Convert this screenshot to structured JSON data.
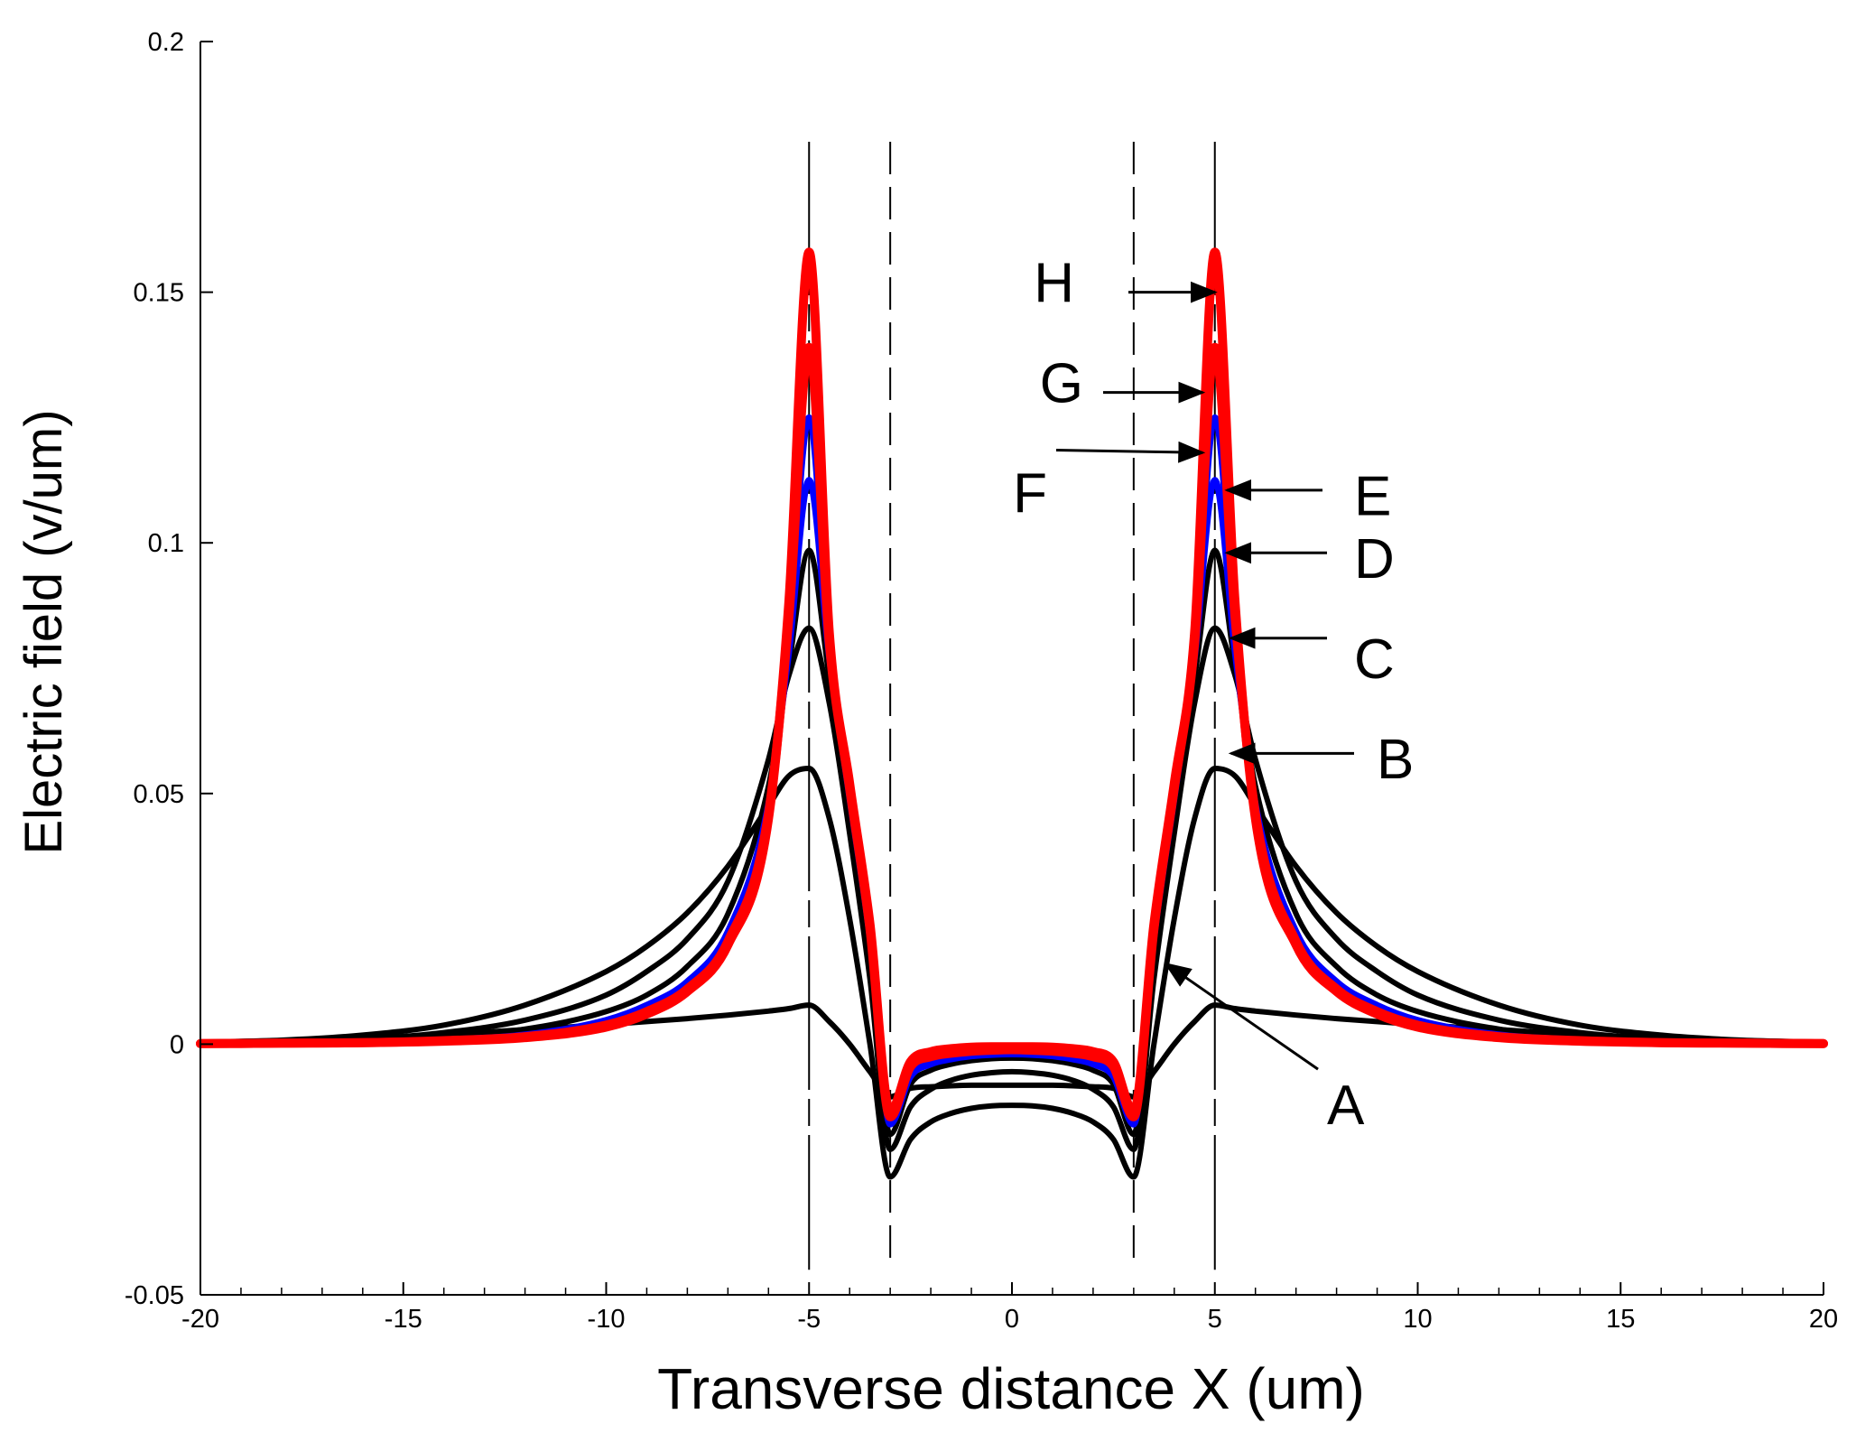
{
  "chart_data": {
    "type": "line",
    "title": "",
    "xlabel": "Transverse distance X (um)",
    "ylabel": "Electric field (v/um)",
    "xlim": [
      -20,
      20
    ],
    "ylim": [
      -0.05,
      0.2
    ],
    "xticks": [
      -20,
      -15,
      -10,
      -5,
      0,
      5,
      10,
      15,
      20
    ],
    "xtick_labels": [
      "-20",
      "-15",
      "-10",
      "-5",
      "0",
      "5",
      "10",
      "15",
      "20"
    ],
    "yticks": [
      -0.05,
      0,
      0.05,
      0.1,
      0.15,
      0.2
    ],
    "ytick_labels": [
      "-0.05",
      "0",
      "0.05",
      "0.1",
      "0.15",
      "0.2"
    ],
    "grid": false,
    "legend": "none",
    "reference_lines": [
      {
        "x": -5,
        "style": "solid"
      },
      {
        "x": -3,
        "style": "dashed"
      },
      {
        "x": 3,
        "style": "dashed"
      },
      {
        "x": 5,
        "style": "solid"
      }
    ],
    "x": [
      -20,
      -18,
      -16,
      -14,
      -12,
      -10,
      -9,
      -8,
      -7,
      -6,
      -5.5,
      -5,
      -4.5,
      -4,
      -3.5,
      -3,
      -2.5,
      -2,
      -1.5,
      -1,
      -0.5,
      0,
      0.5,
      1,
      1.5,
      2,
      2.5,
      3,
      3.5,
      4,
      4.5,
      5,
      5.5,
      6,
      7,
      8,
      9,
      10,
      12,
      14,
      16,
      18,
      20
    ],
    "series": [
      {
        "name": "A",
        "color": "#000000",
        "values": [
          0.0004,
          0.0007,
          0.0012,
          0.0019,
          0.0029,
          0.0039,
          0.0045,
          0.0051,
          0.0058,
          0.0066,
          0.0071,
          0.0078,
          0.0045,
          0.0,
          -0.0055,
          -0.0105,
          -0.0088,
          -0.0085,
          -0.0083,
          -0.0082,
          -0.0082,
          -0.0082,
          -0.0082,
          -0.0082,
          -0.0083,
          -0.0085,
          -0.0088,
          -0.0105,
          -0.0055,
          0.0,
          0.0045,
          0.0078,
          0.0071,
          0.0066,
          0.0058,
          0.0051,
          0.0045,
          0.0039,
          0.0029,
          0.0019,
          0.0012,
          0.0007,
          0.0004
        ]
      },
      {
        "name": "B",
        "color": "#000000",
        "values": [
          0.0004,
          0.0008,
          0.0018,
          0.0038,
          0.0078,
          0.0145,
          0.0195,
          0.0262,
          0.0355,
          0.0475,
          0.0535,
          0.055,
          0.045,
          0.025,
          0.0,
          -0.0265,
          -0.019,
          -0.0155,
          -0.0138,
          -0.0128,
          -0.0123,
          -0.0122,
          -0.0123,
          -0.0128,
          -0.0138,
          -0.0155,
          -0.019,
          -0.0265,
          0.0,
          0.025,
          0.045,
          0.055,
          0.0535,
          0.0475,
          0.0355,
          0.0262,
          0.0195,
          0.0145,
          0.0078,
          0.0038,
          0.0018,
          0.0008,
          0.0004
        ]
      },
      {
        "name": "C",
        "color": "#000000",
        "values": [
          0.0002,
          0.0005,
          0.001,
          0.0023,
          0.0048,
          0.0098,
          0.0145,
          0.021,
          0.0325,
          0.0568,
          0.0735,
          0.083,
          0.068,
          0.042,
          0.013,
          -0.021,
          -0.0125,
          -0.009,
          -0.0072,
          -0.0062,
          -0.0057,
          -0.0055,
          -0.0057,
          -0.0062,
          -0.0072,
          -0.009,
          -0.0125,
          -0.021,
          0.013,
          0.042,
          0.068,
          0.083,
          0.0735,
          0.0568,
          0.0325,
          0.021,
          0.0145,
          0.0098,
          0.0048,
          0.0023,
          0.001,
          0.0005,
          0.0002
        ]
      },
      {
        "name": "D",
        "color": "#000000",
        "values": [
          0.0001,
          0.0003,
          0.0006,
          0.0014,
          0.003,
          0.0065,
          0.0098,
          0.0155,
          0.026,
          0.0515,
          0.0755,
          0.0985,
          0.073,
          0.047,
          0.019,
          -0.018,
          -0.008,
          -0.0052,
          -0.004,
          -0.0033,
          -0.0029,
          -0.0028,
          -0.0029,
          -0.0033,
          -0.004,
          -0.0052,
          -0.008,
          -0.018,
          0.019,
          0.047,
          0.073,
          0.0985,
          0.0755,
          0.0515,
          0.026,
          0.0155,
          0.0098,
          0.0065,
          0.003,
          0.0014,
          0.0006,
          0.0003,
          0.0001
        ]
      },
      {
        "name": "E",
        "color": "#0000ff",
        "values": [
          0.0001,
          0.0002,
          0.0004,
          0.0009,
          0.0019,
          0.0048,
          0.0078,
          0.0125,
          0.0225,
          0.048,
          0.078,
          0.1125,
          0.077,
          0.049,
          0.021,
          -0.016,
          -0.0065,
          -0.004,
          -0.003,
          -0.0024,
          -0.0021,
          -0.002,
          -0.0021,
          -0.0024,
          -0.003,
          -0.004,
          -0.0065,
          -0.016,
          0.021,
          0.049,
          0.077,
          0.1125,
          0.078,
          0.048,
          0.0225,
          0.0125,
          0.0078,
          0.0048,
          0.0019,
          0.0009,
          0.0004,
          0.0002,
          0.0001
        ]
      },
      {
        "name": "F",
        "color": "#0000ff",
        "values": [
          0.0001,
          0.0002,
          0.0004,
          0.0008,
          0.0017,
          0.0043,
          0.0072,
          0.0118,
          0.0218,
          0.047,
          0.082,
          0.125,
          0.078,
          0.05,
          0.022,
          -0.0155,
          -0.0055,
          -0.0032,
          -0.0024,
          -0.0019,
          -0.0017,
          -0.0016,
          -0.0017,
          -0.0019,
          -0.0024,
          -0.0032,
          -0.0055,
          -0.0155,
          0.022,
          0.05,
          0.078,
          0.125,
          0.082,
          0.047,
          0.0218,
          0.0118,
          0.0072,
          0.0043,
          0.0017,
          0.0008,
          0.0004,
          0.0002,
          0.0001
        ]
      },
      {
        "name": "G",
        "color": "#ff0000",
        "values": [
          0.0001,
          0.0002,
          0.0003,
          0.0007,
          0.0015,
          0.0038,
          0.0065,
          0.011,
          0.0205,
          0.046,
          0.085,
          0.139,
          0.08,
          0.051,
          0.023,
          -0.0145,
          -0.0045,
          -0.0025,
          -0.0018,
          -0.0014,
          -0.0012,
          -0.0011,
          -0.0012,
          -0.0014,
          -0.0018,
          -0.0025,
          -0.0045,
          -0.0145,
          0.023,
          0.051,
          0.08,
          0.139,
          0.085,
          0.046,
          0.0205,
          0.011,
          0.0065,
          0.0038,
          0.0015,
          0.0007,
          0.0003,
          0.0002,
          0.0001
        ]
      },
      {
        "name": "H",
        "color": "#ff0000",
        "values": [
          0.0001,
          0.0002,
          0.0003,
          0.0006,
          0.0013,
          0.0034,
          0.006,
          0.0105,
          0.0198,
          0.045,
          0.088,
          0.158,
          0.082,
          0.052,
          0.024,
          -0.0135,
          -0.0035,
          -0.0015,
          -0.0009,
          -0.0006,
          -0.0005,
          -0.0005,
          -0.0005,
          -0.0006,
          -0.0009,
          -0.0015,
          -0.0035,
          -0.0135,
          0.024,
          0.052,
          0.082,
          0.158,
          0.088,
          0.045,
          0.0198,
          0.0105,
          0.006,
          0.0034,
          0.0013,
          0.0006,
          0.0003,
          0.0002,
          0.0001
        ]
      }
    ],
    "annotations": [
      {
        "text": "H",
        "arrow_to": [
          5,
          0.15
        ]
      },
      {
        "text": "G",
        "arrow_to": [
          4.7,
          0.13
        ]
      },
      {
        "text": "F",
        "arrow_to": [
          4.7,
          0.118
        ]
      },
      {
        "text": "E",
        "arrow_to": [
          5.3,
          0.1105
        ]
      },
      {
        "text": "D",
        "arrow_to": [
          5.3,
          0.098
        ]
      },
      {
        "text": "C",
        "arrow_to": [
          5.4,
          0.081
        ]
      },
      {
        "text": "B",
        "arrow_to": [
          5.4,
          0.058
        ]
      },
      {
        "text": "A",
        "arrow_to": [
          3.8,
          0.016
        ]
      }
    ]
  }
}
